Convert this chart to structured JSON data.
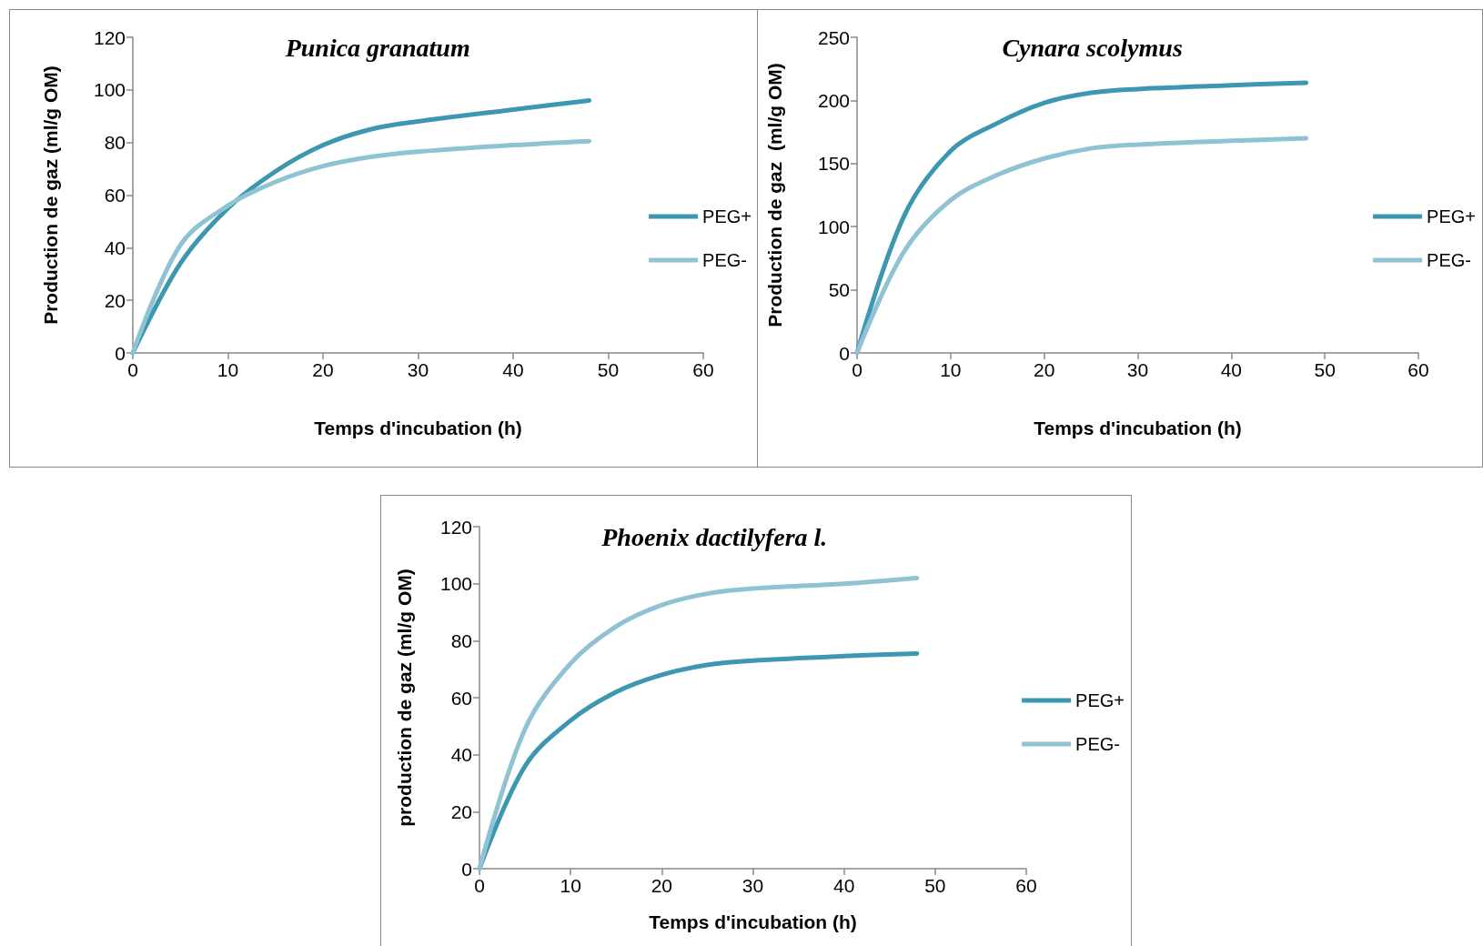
{
  "chart_data": [
    {
      "type": "line",
      "title": "Punica granatum",
      "xlabel": "Temps d'incubation (h)",
      "ylabel": "Production de gaz (ml/g OM)",
      "x": [
        0,
        5,
        10,
        15,
        20,
        25,
        30,
        40,
        48
      ],
      "xlim": [
        0,
        60
      ],
      "xticks": [
        0,
        10,
        20,
        30,
        40,
        50,
        60
      ],
      "ylim": [
        0,
        120
      ],
      "yticks": [
        0,
        20,
        40,
        60,
        80,
        100,
        120
      ],
      "legend": "right",
      "marker": "none",
      "grid": false,
      "series": [
        {
          "name": "PEG+",
          "color": "#3d97b0",
          "values": [
            0,
            34,
            55,
            69,
            79,
            85,
            88,
            92.5,
            96
          ]
        },
        {
          "name": "PEG-",
          "color": "#8fc3d4",
          "values": [
            0,
            41,
            56,
            65,
            71,
            74.5,
            76.5,
            79,
            80.5
          ]
        }
      ]
    },
    {
      "type": "line",
      "title": "Cynara scolymus",
      "xlabel": "Temps d'incubation (h)",
      "ylabel": "Production de gaz  (ml/g OM)",
      "x": [
        0,
        5,
        10,
        15,
        20,
        25,
        30,
        40,
        48
      ],
      "xlim": [
        0,
        60
      ],
      "xticks": [
        0,
        10,
        20,
        30,
        40,
        50,
        60
      ],
      "ylim": [
        0,
        250
      ],
      "yticks": [
        0,
        50,
        100,
        150,
        200,
        250
      ],
      "legend": "right",
      "marker": "none",
      "grid": false,
      "series": [
        {
          "name": "PEG+",
          "color": "#3d97b0",
          "values": [
            0,
            108,
            160,
            182,
            198,
            206,
            209,
            212,
            214
          ]
        },
        {
          "name": "PEG-",
          "color": "#8fc3d4",
          "values": [
            0,
            80,
            121,
            141,
            154,
            162,
            165,
            168,
            170
          ]
        }
      ]
    },
    {
      "type": "line",
      "title": "Phoenix dactilyfera l.",
      "xlabel": "Temps d'incubation (h)",
      "ylabel": "production de gaz (ml/g OM)",
      "x": [
        0,
        5,
        10,
        15,
        20,
        25,
        30,
        40,
        48
      ],
      "xlim": [
        0,
        60
      ],
      "xticks": [
        0,
        10,
        20,
        30,
        40,
        50,
        60
      ],
      "ylim": [
        0,
        120
      ],
      "yticks": [
        0,
        20,
        40,
        60,
        80,
        100,
        120
      ],
      "legend": "right",
      "marker": "none",
      "grid": false,
      "series": [
        {
          "name": "PEG+",
          "color": "#3d97b0",
          "values": [
            0,
            36,
            52,
            62,
            68,
            71.5,
            73,
            74.6,
            75.5
          ]
        },
        {
          "name": "PEG-",
          "color": "#8fc3d4",
          "values": [
            0,
            49,
            72,
            85,
            92.5,
            96.5,
            98.3,
            100,
            102
          ]
        }
      ]
    }
  ]
}
